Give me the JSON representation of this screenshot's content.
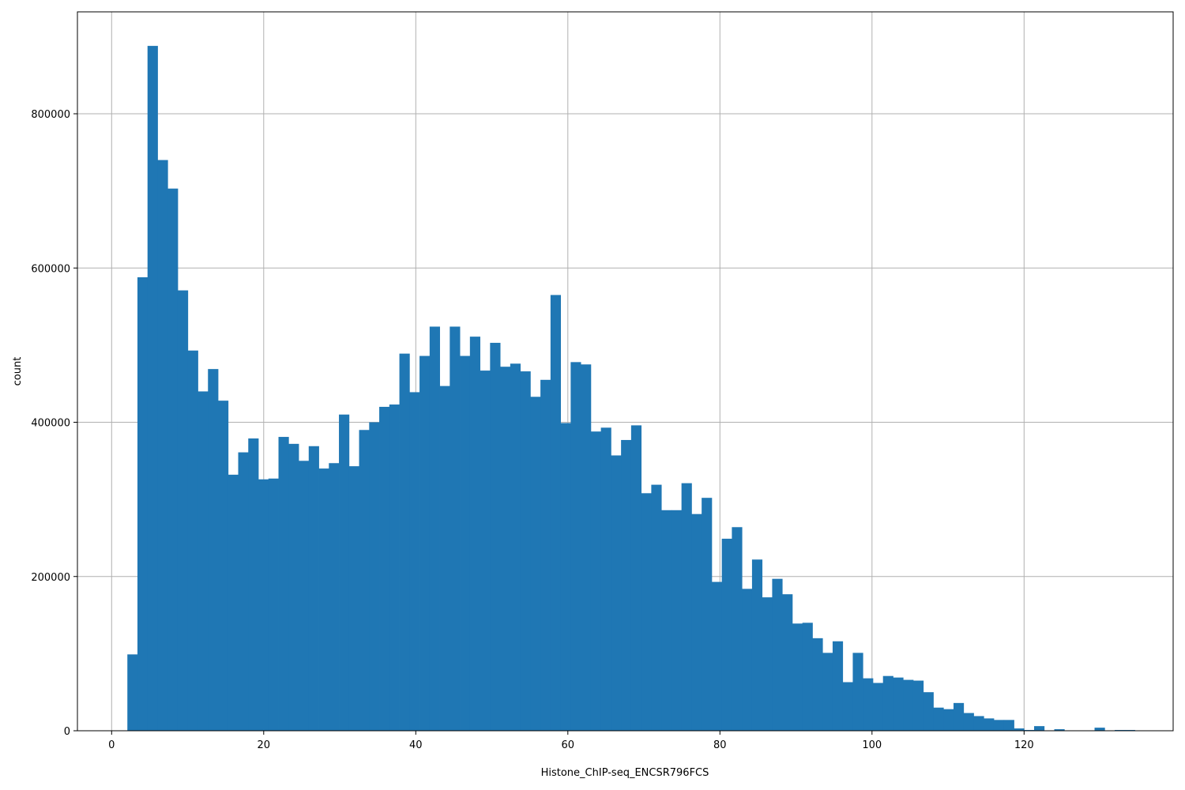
{
  "chart_data": {
    "type": "bar",
    "subtype": "histogram",
    "title": "",
    "xlabel": "Histone_ChIP-seq_ENCSR796FCS",
    "ylabel": "count",
    "xlim": [
      -4.5,
      138.5
    ],
    "ylim": [
      0,
      932000
    ],
    "grid": true,
    "legend": null,
    "bar_color": "#1f77b4",
    "grid_color": "#b0b0b0",
    "x_ticks": [
      0,
      20,
      40,
      60,
      80,
      100,
      120
    ],
    "y_ticks": [
      0,
      200000,
      400000,
      600000,
      800000
    ],
    "bin_start": 2.07,
    "bin_width": 1.325,
    "num_bins": 100,
    "values": [
      99000,
      588000,
      888000,
      740000,
      703000,
      571000,
      493000,
      440000,
      469000,
      428000,
      332000,
      361000,
      379000,
      326000,
      327000,
      381000,
      372000,
      350000,
      369000,
      340000,
      347000,
      410000,
      343000,
      390000,
      400000,
      420000,
      423000,
      489000,
      439000,
      486000,
      524000,
      447000,
      524000,
      486000,
      511000,
      467000,
      503000,
      472000,
      476000,
      466000,
      433000,
      455000,
      565000,
      399000,
      478000,
      475000,
      388000,
      393000,
      357000,
      377000,
      396000,
      308000,
      319000,
      286000,
      286000,
      321000,
      281000,
      302000,
      193000,
      249000,
      264000,
      184000,
      222000,
      173000,
      197000,
      177000,
      139000,
      140000,
      120000,
      101000,
      116000,
      63000,
      101000,
      68000,
      62000,
      71000,
      69000,
      66000,
      65000,
      50000,
      30000,
      28000,
      36000,
      23000,
      19000,
      16000,
      14000,
      14000,
      3000,
      1000,
      6000,
      0,
      2000,
      0,
      0,
      0,
      4000,
      0,
      1000,
      1000
    ]
  },
  "axes": {
    "xlabel": "Histone_ChIP-seq_ENCSR796FCS",
    "ylabel": "count",
    "x_tick_labels": [
      "0",
      "20",
      "40",
      "60",
      "80",
      "100",
      "120"
    ],
    "y_tick_labels": [
      "0",
      "200000",
      "400000",
      "600000",
      "800000"
    ]
  }
}
